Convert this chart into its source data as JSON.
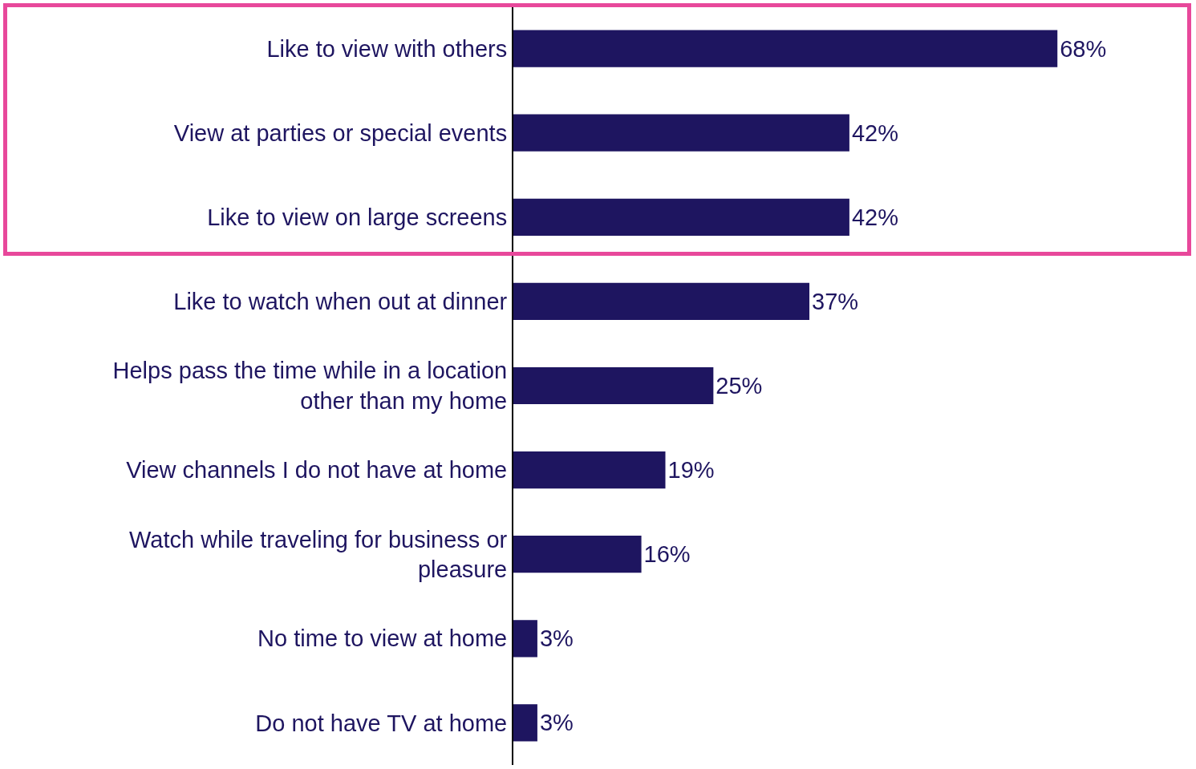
{
  "chart_data": {
    "type": "bar",
    "orientation": "horizontal",
    "categories": [
      "Like to view with others",
      "View at parties or special events",
      "Like to view on large screens",
      "Like to watch when out at dinner",
      "Helps pass the time while in a location other than my home",
      "View channels I do not have at home",
      "Watch while traveling for business or pleasure",
      "No time to view at home",
      "Do not have TV at home"
    ],
    "values": [
      68,
      42,
      42,
      37,
      25,
      19,
      16,
      3,
      3
    ],
    "value_labels": [
      "68%",
      "42%",
      "42%",
      "37%",
      "25%",
      "19%",
      "16%",
      "3%",
      "3%"
    ],
    "color": "#1e1560",
    "grid": false,
    "legend": false,
    "tick_labels": "y"
  }
}
